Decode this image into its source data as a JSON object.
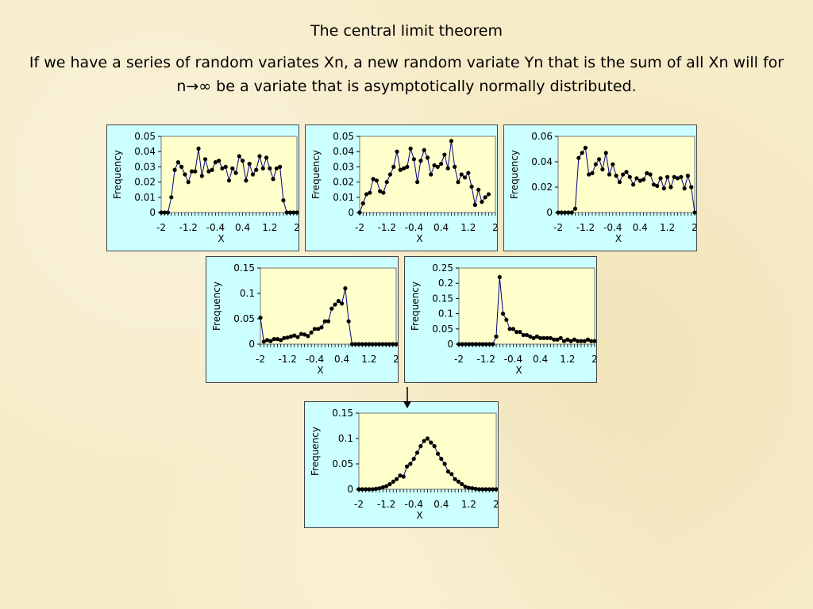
{
  "slide": {
    "title": "The central limit theorem",
    "subtitle": "If we have a series of random variates Xn, a new random variate Yn that is the sum of all Xn will for n→∞ be a variate that is asymptotically normally distributed."
  },
  "colors": {
    "panel_background": "#ccffff",
    "plot_background": "#ffffcc",
    "line": "#000080",
    "marker": "#000000"
  },
  "chart_data": [
    {
      "type": "line",
      "xlabel": "X",
      "ylabel": "Frequency",
      "xlim": [
        -2,
        2
      ],
      "ylim": [
        0,
        0.05
      ],
      "xticks": [
        "-2",
        "-1.2",
        "-0.4",
        "0.4",
        "1.2",
        "2"
      ],
      "yticks": [
        "0",
        "0.01",
        "0.02",
        "0.03",
        "0.04",
        "0.05"
      ],
      "x_start": -2,
      "x_step": 0.1,
      "values": [
        0,
        0,
        0,
        0.01,
        0.028,
        0.033,
        0.03,
        0.025,
        0.02,
        0.027,
        0.027,
        0.042,
        0.024,
        0.035,
        0.027,
        0.028,
        0.033,
        0.034,
        0.029,
        0.03,
        0.021,
        0.029,
        0.026,
        0.037,
        0.034,
        0.021,
        0.032,
        0.025,
        0.028,
        0.037,
        0.029,
        0.036,
        0.029,
        0.022,
        0.029,
        0.03,
        0.008,
        0,
        0,
        0,
        0
      ]
    },
    {
      "type": "line",
      "xlabel": "X",
      "ylabel": "Frequency",
      "xlim": [
        -2,
        2
      ],
      "ylim": [
        0,
        0.05
      ],
      "xticks": [
        "-2",
        "-1.2",
        "-0.4",
        "0.4",
        "1.2",
        "2"
      ],
      "yticks": [
        "0",
        "0.01",
        "0.02",
        "0.03",
        "0.04",
        "0.05"
      ],
      "x_start": -2,
      "x_step": 0.1,
      "values": [
        0,
        0.006,
        0.012,
        0.013,
        0.022,
        0.021,
        0.014,
        0.013,
        0.02,
        0.025,
        0.03,
        0.04,
        0.028,
        0.029,
        0.03,
        0.042,
        0.035,
        0.02,
        0.034,
        0.041,
        0.036,
        0.025,
        0.031,
        0.03,
        0.032,
        0.038,
        0.029,
        0.047,
        0.03,
        0.02,
        0.025,
        0.023,
        0.026,
        0.017,
        0.005,
        0.015,
        0.007,
        0.01,
        0.012
      ]
    },
    {
      "type": "line",
      "xlabel": "X",
      "ylabel": "Frequency",
      "xlim": [
        -2,
        2
      ],
      "ylim": [
        0,
        0.06
      ],
      "xticks": [
        "-2",
        "-1.2",
        "-0.4",
        "0.4",
        "1.2",
        "2"
      ],
      "yticks": [
        "0",
        "0.02",
        "0.04",
        "0.06"
      ],
      "x_start": -2,
      "x_step": 0.1,
      "values": [
        0,
        0,
        0,
        0,
        0,
        0.003,
        0.043,
        0.047,
        0.051,
        0.03,
        0.031,
        0.038,
        0.042,
        0.034,
        0.047,
        0.03,
        0.038,
        0.029,
        0.024,
        0.03,
        0.032,
        0.028,
        0.022,
        0.027,
        0.025,
        0.026,
        0.031,
        0.03,
        0.022,
        0.021,
        0.027,
        0.019,
        0.028,
        0.02,
        0.028,
        0.027,
        0.028,
        0.019,
        0.029,
        0.02,
        0
      ]
    },
    {
      "type": "line",
      "xlabel": "X",
      "ylabel": "Frequency",
      "xlim": [
        -2,
        2
      ],
      "ylim": [
        0,
        0.15
      ],
      "xticks": [
        "-2",
        "-1.2",
        "-0.4",
        "0.4",
        "1.2",
        "2"
      ],
      "yticks": [
        "0",
        "0.05",
        "0.1",
        "0.15"
      ],
      "x_start": -2,
      "x_step": 0.1,
      "values": [
        0.052,
        0.005,
        0.008,
        0.006,
        0.01,
        0.01,
        0.008,
        0.012,
        0.013,
        0.015,
        0.017,
        0.014,
        0.02,
        0.019,
        0.016,
        0.023,
        0.03,
        0.03,
        0.033,
        0.045,
        0.045,
        0.07,
        0.078,
        0.085,
        0.08,
        0.11,
        0.045,
        0,
        0,
        0,
        0,
        0,
        0,
        0,
        0,
        0,
        0,
        0,
        0,
        0,
        0
      ]
    },
    {
      "type": "line",
      "xlabel": "X",
      "ylabel": "Frequency",
      "xlim": [
        -2,
        2
      ],
      "ylim": [
        0,
        0.25
      ],
      "xticks": [
        "-2",
        "-1.2",
        "-0.4",
        "0.4",
        "1.2",
        "2"
      ],
      "yticks": [
        "0",
        "0.05",
        "0.1",
        "0.15",
        "0.2",
        "0.25"
      ],
      "x_start": -2,
      "x_step": 0.1,
      "values": [
        0,
        0,
        0,
        0,
        0,
        0,
        0,
        0,
        0,
        0,
        0,
        0.025,
        0.22,
        0.1,
        0.08,
        0.05,
        0.05,
        0.04,
        0.04,
        0.03,
        0.03,
        0.025,
        0.02,
        0.025,
        0.02,
        0.02,
        0.02,
        0.02,
        0.015,
        0.015,
        0.02,
        0.01,
        0.015,
        0.01,
        0.015,
        0.01,
        0.01,
        0.01,
        0.015,
        0.01,
        0.01
      ]
    },
    {
      "type": "line",
      "xlabel": "X",
      "ylabel": "Frequency",
      "xlim": [
        -2,
        2
      ],
      "ylim": [
        0,
        0.15
      ],
      "xticks": [
        "-2",
        "-1.2",
        "-0.4",
        "0.4",
        "1.2",
        "2"
      ],
      "yticks": [
        "0",
        "0.05",
        "0.1",
        "0.15"
      ],
      "x_start": -2,
      "x_step": 0.1,
      "values": [
        0,
        0,
        0,
        0,
        0,
        0.001,
        0.002,
        0.004,
        0.006,
        0.01,
        0.015,
        0.02,
        0.027,
        0.025,
        0.045,
        0.05,
        0.06,
        0.072,
        0.085,
        0.095,
        0.1,
        0.092,
        0.085,
        0.07,
        0.06,
        0.05,
        0.035,
        0.03,
        0.02,
        0.015,
        0.01,
        0.005,
        0.003,
        0.002,
        0.001,
        0,
        0,
        0,
        0,
        0,
        0
      ]
    }
  ]
}
